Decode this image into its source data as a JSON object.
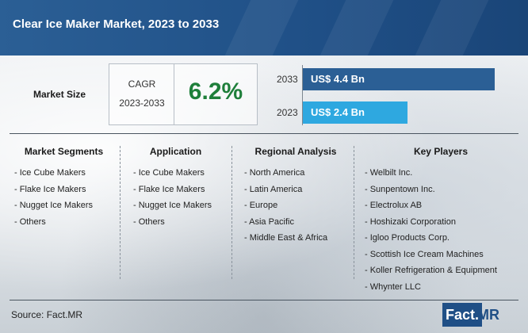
{
  "header": {
    "title": "Clear Ice Maker Market, 2023 to 2033"
  },
  "market_size": {
    "label": "Market Size",
    "cagr_label": "CAGR",
    "cagr_period": "2023-2033",
    "cagr_value": "6.2%",
    "bars": [
      {
        "year": "2033",
        "value_label": "US$ 4.4 Bn",
        "value": 4.4,
        "color": "#2b5f95"
      },
      {
        "year": "2023",
        "value_label": "US$ 2.4 Bn",
        "value": 2.4,
        "color": "#2ea8e0"
      }
    ]
  },
  "columns": [
    {
      "title": "Market Segments",
      "items": [
        "- Ice Cube Makers",
        "- Flake Ice Makers",
        "- Nugget Ice Makers",
        "- Others"
      ]
    },
    {
      "title": "Application",
      "items": [
        "- Ice Cube Makers",
        "- Flake Ice Makers",
        "- Nugget Ice Makers",
        "- Others"
      ]
    },
    {
      "title": "Regional Analysis",
      "items": [
        "- North America",
        "- Latin America",
        "- Europe",
        "- Asia Pacific",
        "- Middle East & Africa"
      ]
    },
    {
      "title": "Key Players",
      "items": [
        "- Welbilt Inc.",
        "- Sunpentown Inc.",
        "- Electrolux AB",
        "- Hoshizaki Corporation",
        "- Igloo Products Corp.",
        "- Scottish Ice Cream Machines",
        "- Koller Refrigeration & Equipment",
        "- Whynter LLC"
      ]
    }
  ],
  "footer": {
    "source": "Source: Fact.MR",
    "logo_left": "Fact.",
    "logo_right": "MR"
  },
  "colors": {
    "header": "#1f4f86",
    "cagr": "#1e7f3a",
    "bar_2033": "#2b5f95",
    "bar_2023": "#2ea8e0"
  }
}
